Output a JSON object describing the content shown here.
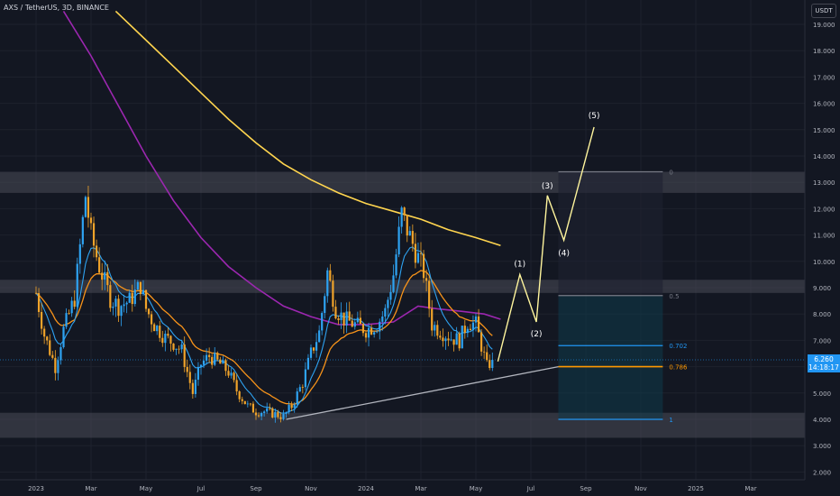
{
  "header": {
    "symbol_label": "AXS / TetherUS, 3D, BINANCE"
  },
  "currency_button": {
    "label": "USDT"
  },
  "last_price": {
    "value": "6.260",
    "countdown": "14:18:17"
  },
  "colors": {
    "background": "#131722",
    "up": "#2ea3f2",
    "down": "#f0a32a",
    "ema_fast": "#2ea3f2",
    "ema_mid": "#f7931a",
    "ema_200": "#9c27b0",
    "ema_slow": "#ffd54f",
    "projection": "#fff59d",
    "fib_line": "#2196f3",
    "fib_key": "#ff9800"
  },
  "chart_data": {
    "type": "candlestick",
    "title": "AXS / TetherUS, 3D, BINANCE",
    "y_axis": {
      "min": 2.0,
      "max": 19.5,
      "ticks": [
        2.0,
        3.0,
        4.0,
        5.0,
        6.0,
        7.0,
        8.0,
        9.0,
        10.0,
        11.0,
        12.0,
        13.0,
        14.0,
        15.0,
        16.0,
        17.0,
        18.0,
        19.0
      ],
      "tick_labels": [
        "2.000",
        "3.000",
        "4.000",
        "5.000",
        "6.000",
        "7.000",
        "8.000",
        "9.000",
        "10.000",
        "11.000",
        "12.000",
        "13.000",
        "14.000",
        "15.000",
        "16.000",
        "17.000",
        "18.000",
        "19.000"
      ]
    },
    "x_axis": {
      "tick_labels": [
        "2023",
        "Mar",
        "May",
        "Jul",
        "Sep",
        "Nov",
        "2024",
        "Mar",
        "May",
        "Jul",
        "Sep",
        "Nov",
        "2025",
        "Mar"
      ],
      "tick_months": [
        0,
        2,
        4,
        6,
        8,
        10,
        12,
        14,
        16,
        18,
        20,
        22,
        24,
        26
      ]
    },
    "price_path": [
      [
        0,
        8.8
      ],
      [
        0.3,
        7.2
      ],
      [
        0.7,
        6.0
      ],
      [
        1.0,
        7.4
      ],
      [
        1.4,
        8.6
      ],
      [
        1.8,
        12.5
      ],
      [
        2.0,
        11.0
      ],
      [
        2.3,
        9.8
      ],
      [
        2.7,
        8.6
      ],
      [
        3.0,
        8.3
      ],
      [
        3.4,
        8.5
      ],
      [
        3.8,
        9.1
      ],
      [
        4.0,
        8.2
      ],
      [
        4.3,
        7.6
      ],
      [
        4.7,
        7.1
      ],
      [
        5.0,
        6.9
      ],
      [
        5.3,
        6.6
      ],
      [
        5.7,
        5.0
      ],
      [
        6.0,
        6.1
      ],
      [
        6.3,
        6.4
      ],
      [
        6.7,
        6.1
      ],
      [
        7.0,
        5.8
      ],
      [
        7.3,
        5.1
      ],
      [
        7.7,
        4.5
      ],
      [
        8.0,
        4.3
      ],
      [
        8.3,
        4.3
      ],
      [
        8.7,
        4.2
      ],
      [
        9.0,
        4.1
      ],
      [
        9.3,
        4.5
      ],
      [
        9.7,
        5.4
      ],
      [
        10.0,
        6.5
      ],
      [
        10.3,
        7.3
      ],
      [
        10.6,
        9.6
      ],
      [
        10.9,
        8.2
      ],
      [
        11.2,
        7.8
      ],
      [
        11.6,
        7.6
      ],
      [
        12.0,
        7.4
      ],
      [
        12.4,
        7.6
      ],
      [
        12.7,
        8.1
      ],
      [
        13.0,
        9.5
      ],
      [
        13.3,
        11.8
      ],
      [
        13.5,
        11.2
      ],
      [
        13.8,
        10.4
      ],
      [
        14.1,
        9.6
      ],
      [
        14.4,
        7.6
      ],
      [
        14.8,
        7.3
      ],
      [
        15.1,
        7.1
      ],
      [
        15.4,
        7.0
      ],
      [
        15.7,
        7.7
      ],
      [
        16.0,
        7.6
      ],
      [
        16.2,
        6.8
      ],
      [
        16.4,
        6.0
      ],
      [
        16.6,
        6.26
      ]
    ],
    "ema_slow_path": [
      [
        2.9,
        19.5
      ],
      [
        4.0,
        18.4
      ],
      [
        5.0,
        17.4
      ],
      [
        6.0,
        16.4
      ],
      [
        7.0,
        15.4
      ],
      [
        8.0,
        14.5
      ],
      [
        9.0,
        13.7
      ],
      [
        10.0,
        13.1
      ],
      [
        11.0,
        12.6
      ],
      [
        12.0,
        12.2
      ],
      [
        13.0,
        11.9
      ],
      [
        14.0,
        11.6
      ],
      [
        15.0,
        11.2
      ],
      [
        16.0,
        10.9
      ],
      [
        16.9,
        10.6
      ]
    ],
    "ema_200_path": [
      [
        1.0,
        19.5
      ],
      [
        2.0,
        17.8
      ],
      [
        3.0,
        15.9
      ],
      [
        4.0,
        14.0
      ],
      [
        5.0,
        12.3
      ],
      [
        6.0,
        10.9
      ],
      [
        7.0,
        9.8
      ],
      [
        8.0,
        9.0
      ],
      [
        9.0,
        8.3
      ],
      [
        10.0,
        7.9
      ],
      [
        11.0,
        7.6
      ],
      [
        12.0,
        7.6
      ],
      [
        13.0,
        7.7
      ],
      [
        13.9,
        8.3
      ],
      [
        14.6,
        8.2
      ],
      [
        15.5,
        8.1
      ],
      [
        16.3,
        8.0
      ],
      [
        16.9,
        7.8
      ]
    ],
    "zones": [
      {
        "low": 12.6,
        "high": 13.4,
        "label": "resistance-zone-top"
      },
      {
        "low": 8.8,
        "high": 9.3,
        "label": "resistance-zone-mid"
      },
      {
        "low": 3.3,
        "high": 4.25,
        "label": "support-zone-bottom"
      }
    ],
    "trendline": {
      "from": [
        9.1,
        4.0
      ],
      "to": [
        19.0,
        6.0
      ]
    },
    "fib_retracement": {
      "x_start": 19.0,
      "x_end": 22.8,
      "levels": [
        {
          "ratio": "0",
          "price": 13.4
        },
        {
          "ratio": "0.5",
          "price": 8.7
        },
        {
          "ratio": "0.702",
          "price": 6.8
        },
        {
          "ratio": "0.786",
          "price": 6.0
        },
        {
          "ratio": "1",
          "price": 4.0
        }
      ]
    },
    "wave_projection": [
      {
        "label": "",
        "x": 16.8,
        "y": 6.2
      },
      {
        "label": "(1)",
        "x": 17.6,
        "y": 9.5
      },
      {
        "label": "(2)",
        "x": 18.2,
        "y": 7.7
      },
      {
        "label": "(3)",
        "x": 18.6,
        "y": 12.5
      },
      {
        "label": "(4)",
        "x": 19.2,
        "y": 10.8
      },
      {
        "label": "(5)",
        "x": 20.3,
        "y": 15.1
      }
    ]
  }
}
